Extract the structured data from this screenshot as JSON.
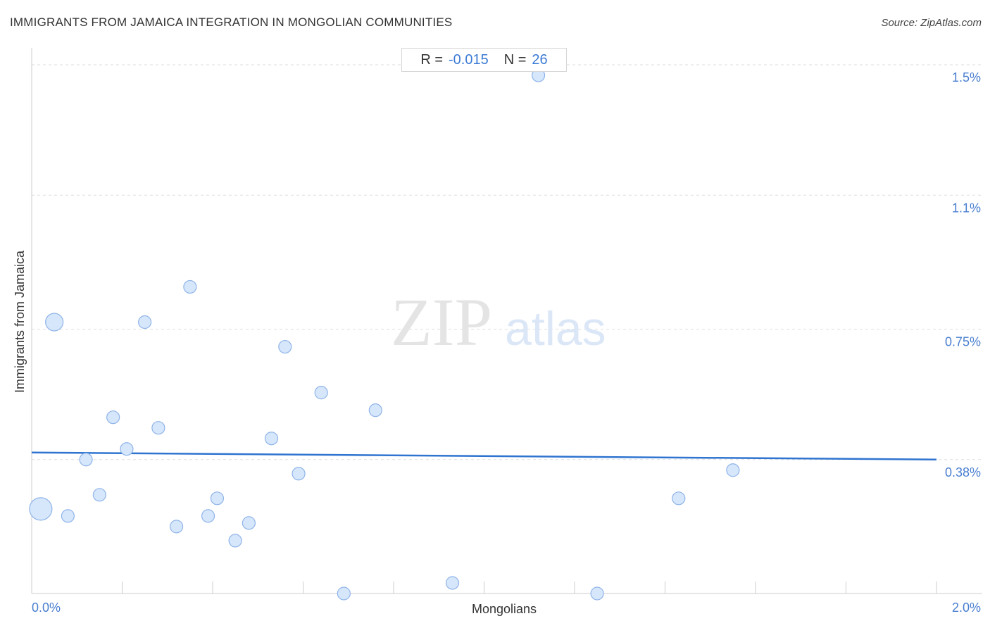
{
  "title": "IMMIGRANTS FROM JAMAICA INTEGRATION IN MONGOLIAN COMMUNITIES",
  "source": "Source: ZipAtlas.com",
  "stats": {
    "r_label": "R =",
    "r_value": "-0.015",
    "n_label": "N =",
    "n_value": "26"
  },
  "watermark": {
    "zip": "ZIP",
    "atlas": "atlas"
  },
  "colors": {
    "accent": "#2f74d0",
    "point_fill": "#d6e6fb",
    "point_stroke": "#8fb4e8",
    "grid": "#dddddd",
    "tick_label": "#4a7fd0"
  },
  "chart_data": {
    "type": "scatter",
    "xlabel": "Mongolians",
    "ylabel": "Immigrants from Jamaica",
    "xlim": [
      0,
      2.0
    ],
    "ylim": [
      0,
      1.54
    ],
    "x_tick_labels": [
      {
        "value": 0,
        "label": "0.0%"
      },
      {
        "value": 2.0,
        "label": "2.0%"
      }
    ],
    "y_tick_labels": [
      {
        "value": 0.38,
        "label": "0.38%"
      },
      {
        "value": 0.75,
        "label": "0.75%"
      },
      {
        "value": 1.13,
        "label": "1.1%"
      },
      {
        "value": 1.5,
        "label": "1.5%"
      }
    ],
    "grid": true,
    "points": [
      {
        "x": 0.02,
        "y": 0.24,
        "size": 3
      },
      {
        "x": 0.05,
        "y": 0.77,
        "size": 2
      },
      {
        "x": 0.08,
        "y": 0.22,
        "size": 1
      },
      {
        "x": 0.12,
        "y": 0.38,
        "size": 1
      },
      {
        "x": 0.15,
        "y": 0.28,
        "size": 1
      },
      {
        "x": 0.18,
        "y": 0.5,
        "size": 1
      },
      {
        "x": 0.21,
        "y": 0.41,
        "size": 1
      },
      {
        "x": 0.25,
        "y": 0.77,
        "size": 1
      },
      {
        "x": 0.28,
        "y": 0.47,
        "size": 1
      },
      {
        "x": 0.32,
        "y": 0.19,
        "size": 1
      },
      {
        "x": 0.35,
        "y": 0.87,
        "size": 1
      },
      {
        "x": 0.39,
        "y": 0.22,
        "size": 1
      },
      {
        "x": 0.41,
        "y": 0.27,
        "size": 1
      },
      {
        "x": 0.45,
        "y": 0.15,
        "size": 1
      },
      {
        "x": 0.48,
        "y": 0.2,
        "size": 1
      },
      {
        "x": 0.53,
        "y": 0.44,
        "size": 1
      },
      {
        "x": 0.56,
        "y": 0.7,
        "size": 1
      },
      {
        "x": 0.59,
        "y": 0.34,
        "size": 1
      },
      {
        "x": 0.64,
        "y": 0.57,
        "size": 1
      },
      {
        "x": 0.69,
        "y": 0.0,
        "size": 1
      },
      {
        "x": 0.76,
        "y": 0.52,
        "size": 1
      },
      {
        "x": 0.93,
        "y": 0.03,
        "size": 1
      },
      {
        "x": 1.12,
        "y": 1.47,
        "size": 1
      },
      {
        "x": 1.25,
        "y": 0.0,
        "size": 1
      },
      {
        "x": 1.43,
        "y": 0.27,
        "size": 1
      },
      {
        "x": 1.55,
        "y": 0.35,
        "size": 1
      }
    ],
    "trendline": {
      "x": [
        0,
        2.0
      ],
      "y": [
        0.4,
        0.38
      ]
    }
  }
}
